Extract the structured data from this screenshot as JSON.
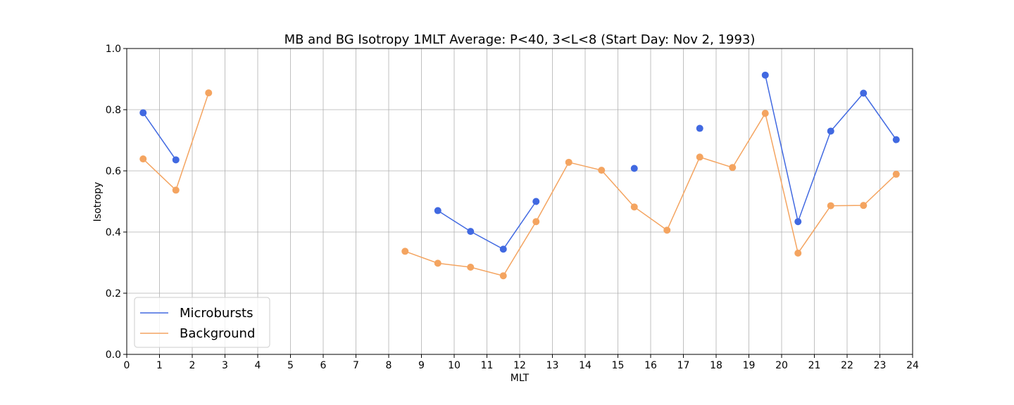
{
  "chart_data": {
    "type": "line",
    "title": "MB and BG Isotropy 1MLT Average: P<40, 3<L<8 (Start Day: Nov 2, 1993)",
    "xlabel": "MLT",
    "ylabel": "Isotropy",
    "xlim": [
      0,
      24
    ],
    "ylim": [
      0.0,
      1.0
    ],
    "xticks": [
      "0",
      "1",
      "2",
      "3",
      "4",
      "5",
      "6",
      "7",
      "8",
      "9",
      "10",
      "11",
      "12",
      "13",
      "14",
      "15",
      "16",
      "17",
      "18",
      "19",
      "20",
      "21",
      "22",
      "23",
      "24"
    ],
    "yticks": [
      "0.0",
      "0.2",
      "0.4",
      "0.6",
      "0.8",
      "1.0"
    ],
    "grid": true,
    "legend_position": "lower-left",
    "series": [
      {
        "name": "Microbursts",
        "color": "#4169e1",
        "x": [
          0.5,
          1.5,
          2.5,
          3.5,
          4.5,
          5.5,
          6.5,
          7.5,
          8.5,
          9.5,
          10.5,
          11.5,
          12.5,
          13.5,
          14.5,
          15.5,
          16.5,
          17.5,
          18.5,
          19.5,
          20.5,
          21.5,
          22.5,
          23.5
        ],
        "values": [
          0.79,
          0.636,
          null,
          null,
          null,
          null,
          null,
          null,
          null,
          0.47,
          0.402,
          0.344,
          0.5,
          null,
          null,
          0.608,
          null,
          0.739,
          null,
          0.913,
          0.434,
          0.73,
          0.854,
          0.702
        ]
      },
      {
        "name": "Background",
        "color": "#f4a460",
        "x": [
          0.5,
          1.5,
          2.5,
          3.5,
          4.5,
          5.5,
          6.5,
          7.5,
          8.5,
          9.5,
          10.5,
          11.5,
          12.5,
          13.5,
          14.5,
          15.5,
          16.5,
          17.5,
          18.5,
          19.5,
          20.5,
          21.5,
          22.5,
          23.5
        ],
        "values": [
          0.639,
          0.537,
          0.855,
          null,
          null,
          null,
          null,
          null,
          0.337,
          0.298,
          0.285,
          0.257,
          0.434,
          0.628,
          0.602,
          0.482,
          0.406,
          0.645,
          0.611,
          0.788,
          0.331,
          0.486,
          0.487,
          0.589
        ]
      }
    ]
  }
}
